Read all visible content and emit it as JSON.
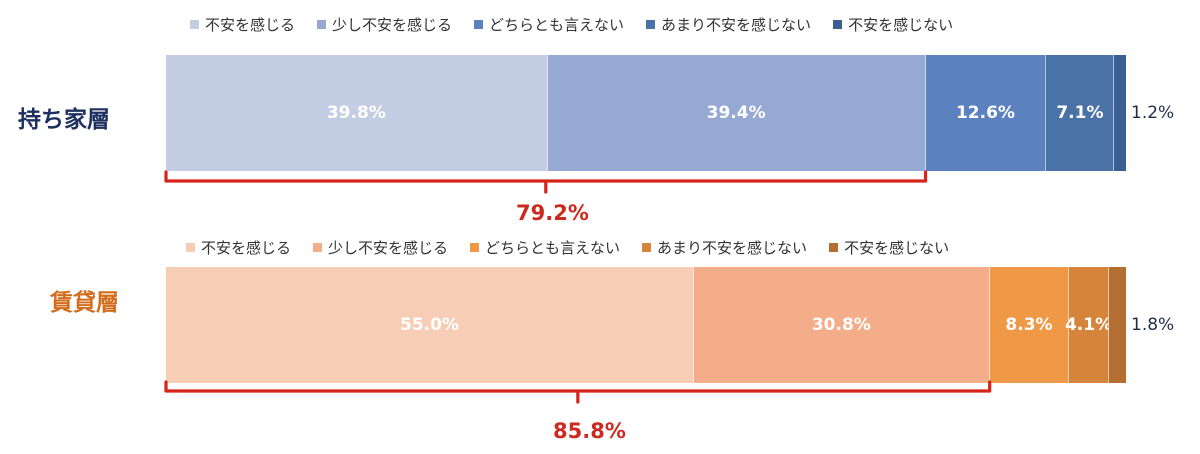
{
  "colors": {
    "owner": [
      "#c3cde3",
      "#95a9d2",
      "#5b82bf",
      "#4a72a6",
      "#3c5f91"
    ],
    "renter": [
      "#f8cdb6",
      "#f3ad89",
      "#ef9947",
      "#d6843a",
      "#b56e32"
    ],
    "owner_title": "#1c2f5e",
    "renter_title": "#d26d1e",
    "bracket": "#d6241b"
  },
  "chart_data": [
    {
      "type": "bar",
      "orientation": "horizontal-stacked-100",
      "title": "持ち家層",
      "legend": [
        "不安を感じる",
        "少し不安を感じる",
        "どちらとも言えない",
        "あまり不安を感じない",
        "不安を感じない"
      ],
      "legend_placement": "top",
      "values": [
        39.8,
        39.4,
        12.6,
        7.1,
        1.2
      ],
      "labels": [
        "39.8%",
        "39.4%",
        "12.6%",
        "7.1%",
        "1.2%"
      ],
      "bracket_total": "79.2%"
    },
    {
      "type": "bar",
      "orientation": "horizontal-stacked-100",
      "title": "賃貸層",
      "legend": [
        "不安を感じる",
        "少し不安を感じる",
        "どちらとも言えない",
        "あまり不安を感じない",
        "不安を感じない"
      ],
      "legend_placement": "top",
      "values": [
        55.0,
        30.8,
        8.3,
        4.1,
        1.8
      ],
      "labels": [
        "55.0%",
        "30.8%",
        "8.3%",
        "4.1%",
        "1.8%"
      ],
      "bracket_total": "85.8%"
    }
  ]
}
